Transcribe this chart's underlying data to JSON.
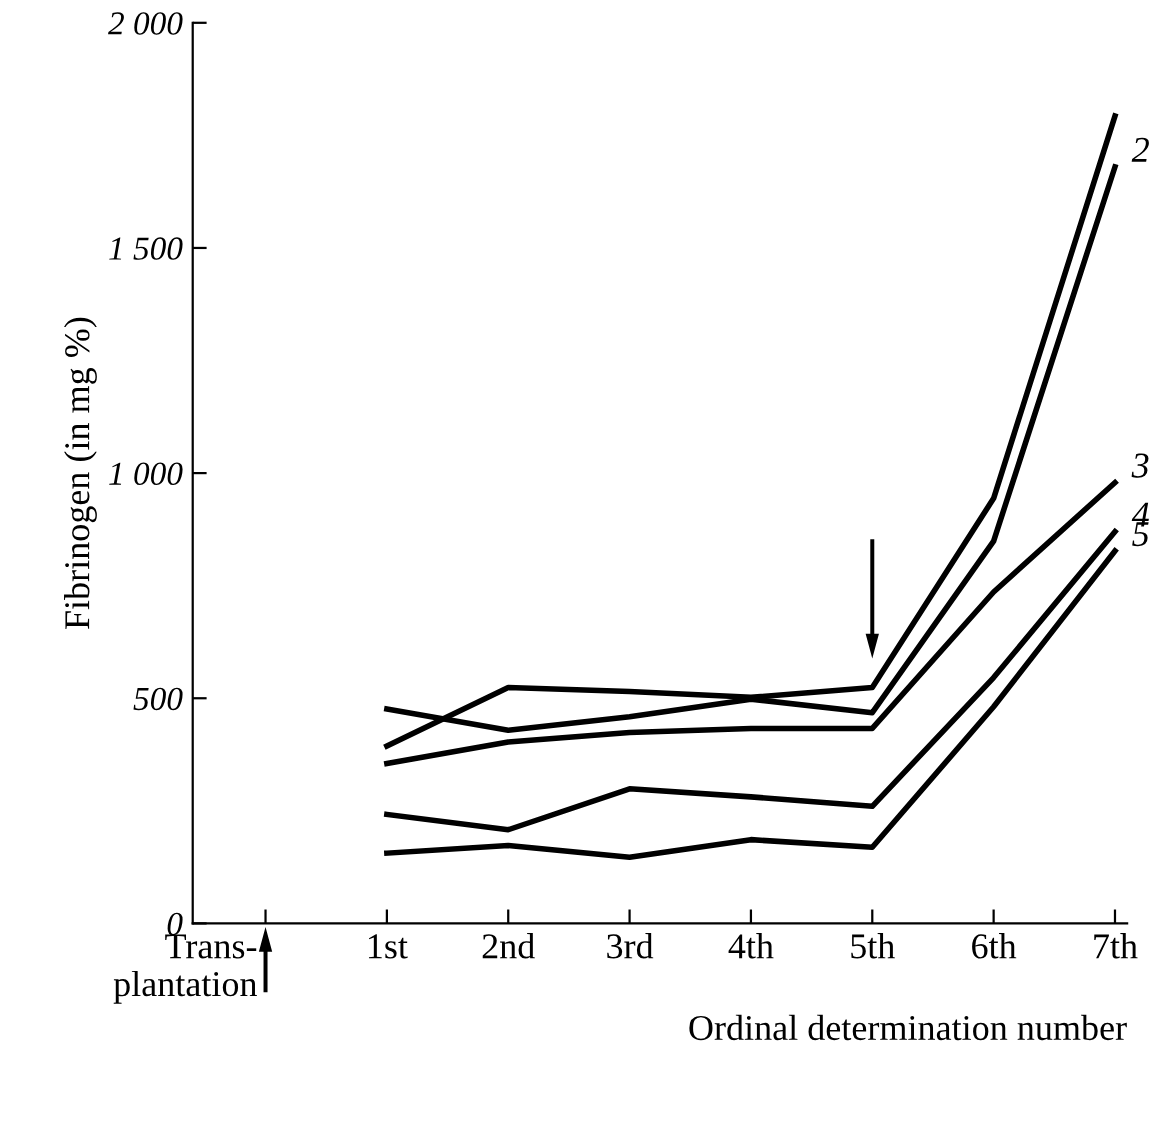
{
  "chart_data": {
    "type": "line",
    "xlabel": "Ordinal determination number",
    "ylabel": "Fibrinogen (in mg %)",
    "categories": [
      "Trans-\nplantation",
      "1st",
      "2nd",
      "3rd",
      "4th",
      "5th",
      "6th",
      "7th"
    ],
    "series": [
      {
        "color": "#000000",
        "values": [
          null,
          394,
          524,
          515,
          502,
          524,
          944,
          1793
        ]
      },
      {
        "name": "2",
        "color": "#000000",
        "values": [
          null,
          476,
          429,
          459,
          498,
          468,
          849,
          1680
        ]
      },
      {
        "name": "3",
        "color": "#000000",
        "values": [
          null,
          355,
          403,
          424,
          433,
          433,
          736,
          979
        ]
      },
      {
        "name": "4",
        "color": "#000000",
        "values": [
          null,
          242,
          208,
          299,
          281,
          260,
          546,
          870
        ]
      },
      {
        "name": "5",
        "color": "#000000",
        "values": [
          null,
          156,
          173,
          147,
          186,
          169,
          481,
          827
        ]
      }
    ],
    "ylim": [
      0,
      2000
    ],
    "yticks": [
      0,
      {
        "value": 500,
        "label": "500"
      },
      {
        "value": 1000,
        "label": "1 000"
      },
      {
        "value": 1500,
        "label": "1 500"
      },
      {
        "value": 2000,
        "label": "2 000"
      }
    ],
    "grid": false,
    "legend": false,
    "marker": "none",
    "line_style": "solid"
  }
}
